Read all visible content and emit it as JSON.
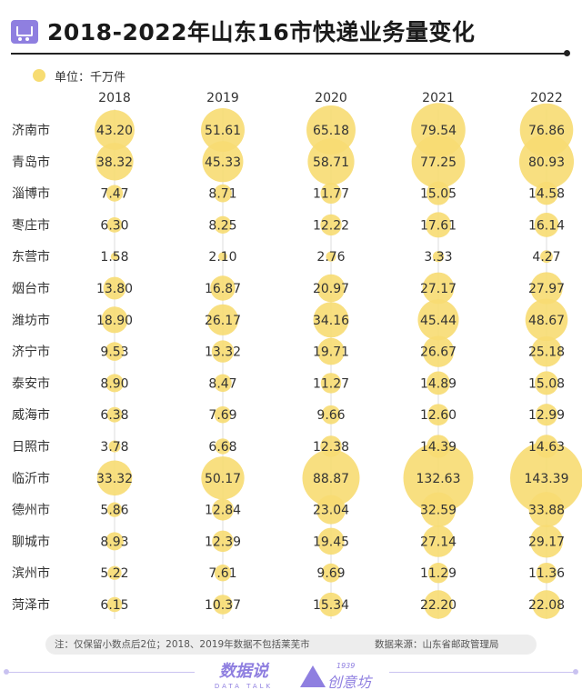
{
  "header": {
    "title": "2018-2022年山东16市快递业务量变化",
    "icon": "delivery-cart-icon"
  },
  "legend": {
    "label": "单位：千万件",
    "color": "#f7dc72"
  },
  "chart_data": {
    "type": "bubble-table",
    "title": "2018-2022年山东16市快递业务量变化",
    "unit": "单位：千万件",
    "columns": [
      "2018",
      "2019",
      "2020",
      "2021",
      "2022"
    ],
    "bubble_color": "#f7dc72",
    "rows": [
      {
        "city": "济南市",
        "values": [
          43.2,
          51.61,
          65.18,
          79.54,
          76.86
        ]
      },
      {
        "city": "青岛市",
        "values": [
          38.32,
          45.33,
          58.71,
          77.25,
          80.93
        ]
      },
      {
        "city": "淄博市",
        "values": [
          7.47,
          8.71,
          11.77,
          15.05,
          14.58
        ]
      },
      {
        "city": "枣庄市",
        "values": [
          6.3,
          8.25,
          12.22,
          17.61,
          16.14
        ]
      },
      {
        "city": "东营市",
        "values": [
          1.58,
          2.1,
          2.76,
          3.33,
          4.27
        ]
      },
      {
        "city": "烟台市",
        "values": [
          13.8,
          16.87,
          20.97,
          27.17,
          27.97
        ]
      },
      {
        "city": "潍坊市",
        "values": [
          18.9,
          26.17,
          34.16,
          45.44,
          48.67
        ]
      },
      {
        "city": "济宁市",
        "values": [
          9.53,
          13.32,
          19.71,
          26.67,
          25.18
        ]
      },
      {
        "city": "泰安市",
        "values": [
          8.9,
          8.47,
          11.27,
          14.89,
          15.08
        ]
      },
      {
        "city": "威海市",
        "values": [
          6.38,
          7.69,
          9.66,
          12.6,
          12.99
        ]
      },
      {
        "city": "日照市",
        "values": [
          3.78,
          6.68,
          12.38,
          14.39,
          14.63
        ]
      },
      {
        "city": "临沂市",
        "values": [
          33.32,
          50.17,
          88.87,
          132.63,
          143.39
        ]
      },
      {
        "city": "德州市",
        "values": [
          5.86,
          12.84,
          23.04,
          32.59,
          33.88
        ]
      },
      {
        "city": "聊城市",
        "values": [
          8.93,
          12.39,
          19.45,
          27.14,
          29.17
        ]
      },
      {
        "city": "滨州市",
        "values": [
          5.22,
          7.61,
          9.69,
          11.29,
          11.36
        ]
      },
      {
        "city": "菏泽市",
        "values": [
          6.15,
          10.37,
          15.34,
          22.2,
          22.08
        ]
      }
    ]
  },
  "footer": {
    "note": "注：仅保留小数点后2位；2018、2019年数据不包括莱芜市",
    "source": "数据来源：山东省邮政管理局",
    "brand_main": "数据说",
    "brand_main_sub": "DATA TALK",
    "brand_second_year": "1939",
    "brand_second": "创意坊",
    "brand_second_icon": "mountain-logo-icon"
  }
}
